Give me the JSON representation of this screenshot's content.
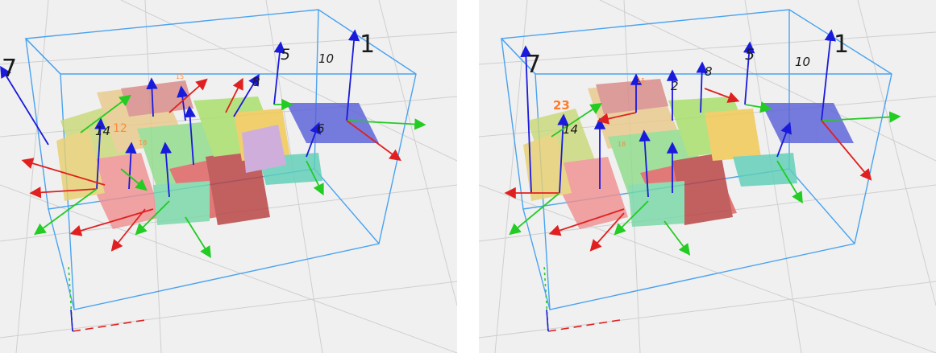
{
  "colors": {
    "background": "#f0f0f0",
    "grid": "#d0d0d0",
    "bounding_box": "#4aa3f0",
    "axis_x": "#e02020",
    "axis_y": "#22cc22",
    "axis_z": "#1a1adc",
    "label": "#1a1a1a",
    "label_highlight": "#ff8a3d"
  },
  "left_view": {
    "labels": {
      "l1": "1",
      "l5": "5",
      "l7": "7",
      "l8": "8",
      "l10": "10",
      "l15": "15",
      "l14": "14",
      "l12": "12",
      "l18": "18",
      "l6": "6"
    }
  },
  "right_view": {
    "labels": {
      "l1": "1",
      "l5": "5",
      "l7": "7",
      "l8": "8",
      "l10": "10",
      "l23": "23",
      "l15": "15",
      "l14": "14",
      "l18": "18",
      "l2": "2"
    }
  }
}
